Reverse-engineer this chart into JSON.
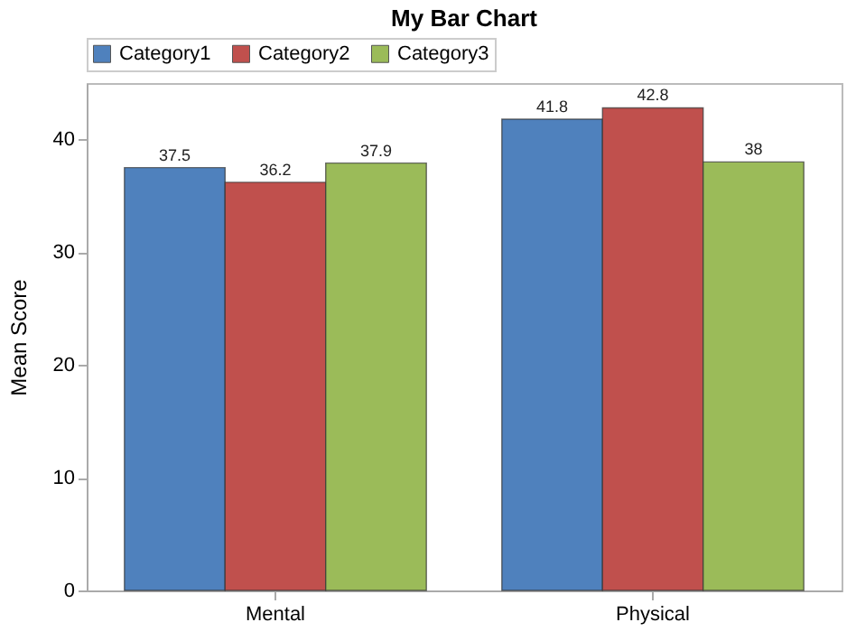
{
  "chart_data": {
    "type": "bar",
    "title": "My Bar Chart",
    "ylabel": "Mean Score",
    "categories": [
      "Mental",
      "Physical"
    ],
    "series": [
      {
        "name": "Category1",
        "color": "#4f81bd",
        "values": [
          37.5,
          41.8
        ]
      },
      {
        "name": "Category2",
        "color": "#c0504d",
        "values": [
          36.2,
          42.8
        ]
      },
      {
        "name": "Category3",
        "color": "#9bbb59",
        "values": [
          37.9,
          38
        ]
      }
    ],
    "ylim": [
      0,
      45
    ],
    "yticks": [
      0,
      10,
      20,
      30,
      40
    ],
    "grid": false,
    "legend": "top left",
    "data_labels": true
  }
}
